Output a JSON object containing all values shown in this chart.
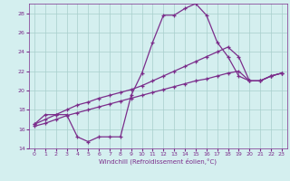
{
  "xlabel": "Windchill (Refroidissement éolien,°C)",
  "line_color": "#7b2d8b",
  "bg_color": "#d4efef",
  "grid_color": "#a8cecc",
  "xlim": [
    -0.5,
    23.5
  ],
  "ylim": [
    14,
    29
  ],
  "xticks": [
    0,
    1,
    2,
    3,
    4,
    5,
    6,
    7,
    8,
    9,
    10,
    11,
    12,
    13,
    14,
    15,
    16,
    17,
    18,
    19,
    20,
    21,
    22,
    23
  ],
  "yticks": [
    14,
    16,
    18,
    20,
    22,
    24,
    26,
    28
  ],
  "series1_x": [
    0,
    1,
    2,
    3,
    4,
    5,
    6,
    7,
    8,
    9,
    10,
    11,
    12,
    13,
    14,
    15,
    16,
    17,
    18,
    19,
    20,
    21,
    22,
    23
  ],
  "series1_y": [
    16.5,
    17.5,
    17.5,
    17.5,
    15.2,
    14.7,
    15.2,
    15.2,
    15.2,
    19.5,
    21.8,
    25.0,
    27.8,
    27.8,
    28.5,
    29.0,
    27.8,
    25.0,
    23.5,
    21.5,
    21.0,
    21.0,
    21.5,
    21.8
  ],
  "series2_x": [
    0,
    1,
    2,
    3,
    4,
    5,
    6,
    7,
    8,
    9,
    10,
    11,
    12,
    13,
    14,
    15,
    16,
    17,
    18,
    19,
    20,
    21,
    22,
    23
  ],
  "series2_y": [
    16.5,
    17.0,
    17.5,
    18.0,
    18.5,
    18.8,
    19.2,
    19.5,
    19.8,
    20.1,
    20.5,
    21.0,
    21.5,
    22.0,
    22.5,
    23.0,
    23.5,
    24.0,
    24.5,
    23.5,
    21.0,
    21.0,
    21.5,
    21.8
  ],
  "series3_x": [
    0,
    1,
    2,
    3,
    4,
    5,
    6,
    7,
    8,
    9,
    10,
    11,
    12,
    13,
    14,
    15,
    16,
    17,
    18,
    19,
    20,
    21,
    22,
    23
  ],
  "series3_y": [
    16.3,
    16.6,
    17.0,
    17.4,
    17.7,
    18.0,
    18.3,
    18.6,
    18.9,
    19.2,
    19.5,
    19.8,
    20.1,
    20.4,
    20.7,
    21.0,
    21.2,
    21.5,
    21.8,
    22.0,
    21.0,
    21.0,
    21.5,
    21.8
  ]
}
